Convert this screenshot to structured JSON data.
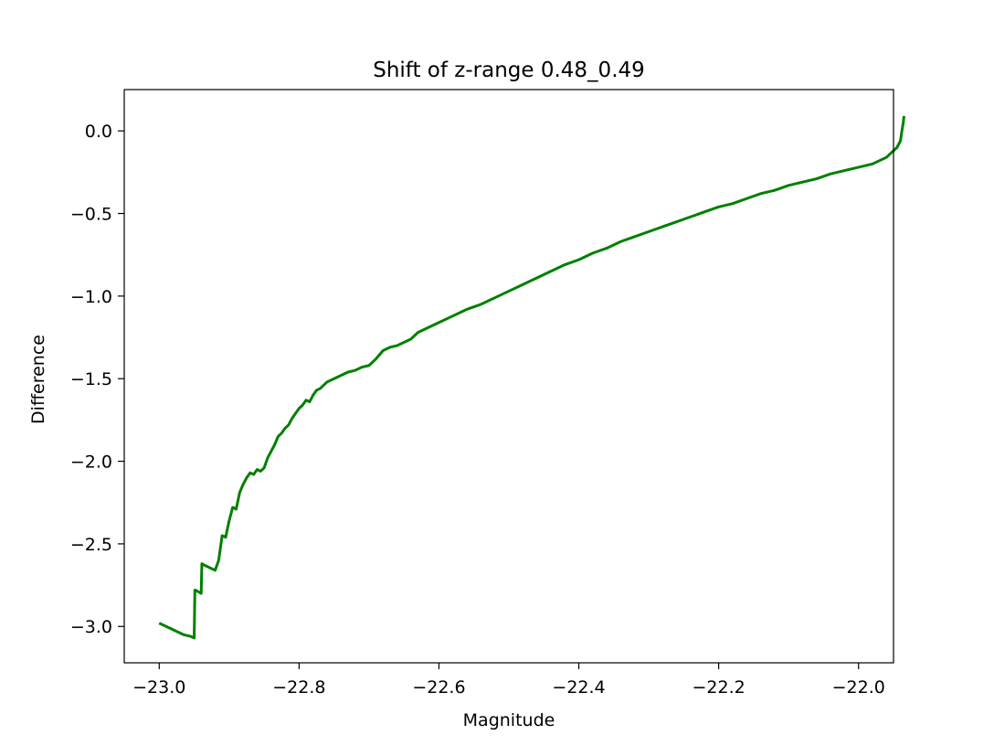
{
  "chart_data": {
    "type": "line",
    "title": "Shift of z-range 0.48_0.49",
    "xlabel": "Magnitude",
    "ylabel": "Difference",
    "xlim": [
      -23.05,
      -21.95
    ],
    "ylim": [
      -3.22,
      0.25
    ],
    "xticks": [
      -23.0,
      -22.8,
      -22.6,
      -22.4,
      -22.2,
      -22.0
    ],
    "xtick_labels": [
      "−23.0",
      "−22.8",
      "−22.6",
      "−22.4",
      "−22.2",
      "−22.0"
    ],
    "yticks": [
      0.0,
      -0.5,
      -1.0,
      -1.5,
      -2.0,
      -2.5,
      -3.0
    ],
    "ytick_labels": [
      "0.0",
      "−0.5",
      "−1.0",
      "−1.5",
      "−2.0",
      "−2.5",
      "−3.0"
    ],
    "grid": false,
    "legend": false,
    "series": [
      {
        "color": "#008000",
        "x": [
          -23.0,
          -22.99,
          -22.98,
          -22.975,
          -22.97,
          -22.965,
          -22.96,
          -22.955,
          -22.95,
          -22.949,
          -22.948,
          -22.94,
          -22.939,
          -22.935,
          -22.93,
          -22.925,
          -22.92,
          -22.915,
          -22.91,
          -22.905,
          -22.9,
          -22.895,
          -22.894,
          -22.89,
          -22.885,
          -22.88,
          -22.875,
          -22.87,
          -22.865,
          -22.86,
          -22.855,
          -22.85,
          -22.845,
          -22.84,
          -22.835,
          -22.83,
          -22.825,
          -22.82,
          -22.815,
          -22.81,
          -22.805,
          -22.8,
          -22.795,
          -22.79,
          -22.785,
          -22.78,
          -22.775,
          -22.77,
          -22.76,
          -22.75,
          -22.74,
          -22.73,
          -22.72,
          -22.71,
          -22.7,
          -22.69,
          -22.68,
          -22.67,
          -22.66,
          -22.65,
          -22.64,
          -22.63,
          -22.62,
          -22.61,
          -22.6,
          -22.58,
          -22.56,
          -22.54,
          -22.52,
          -22.5,
          -22.48,
          -22.46,
          -22.44,
          -22.42,
          -22.4,
          -22.38,
          -22.36,
          -22.34,
          -22.32,
          -22.3,
          -22.28,
          -22.26,
          -22.24,
          -22.22,
          -22.2,
          -22.18,
          -22.16,
          -22.14,
          -22.12,
          -22.1,
          -22.08,
          -22.06,
          -22.04,
          -22.02,
          -22.0,
          -21.98,
          -21.97,
          -21.96,
          -21.955,
          -21.95,
          -21.945,
          -21.94,
          -21.938,
          -21.936,
          -21.935
        ],
        "y": [
          -2.98,
          -3.0,
          -3.02,
          -3.03,
          -3.04,
          -3.05,
          -3.055,
          -3.06,
          -3.07,
          -2.78,
          -2.78,
          -2.8,
          -2.62,
          -2.63,
          -2.64,
          -2.65,
          -2.66,
          -2.6,
          -2.45,
          -2.46,
          -2.36,
          -2.28,
          -2.28,
          -2.29,
          -2.19,
          -2.14,
          -2.1,
          -2.07,
          -2.08,
          -2.05,
          -2.06,
          -2.04,
          -1.98,
          -1.94,
          -1.9,
          -1.85,
          -1.83,
          -1.8,
          -1.78,
          -1.74,
          -1.71,
          -1.68,
          -1.66,
          -1.63,
          -1.64,
          -1.6,
          -1.57,
          -1.56,
          -1.52,
          -1.5,
          -1.48,
          -1.46,
          -1.45,
          -1.43,
          -1.42,
          -1.38,
          -1.33,
          -1.31,
          -1.3,
          -1.28,
          -1.26,
          -1.22,
          -1.2,
          -1.18,
          -1.16,
          -1.12,
          -1.08,
          -1.05,
          -1.01,
          -0.97,
          -0.93,
          -0.89,
          -0.85,
          -0.81,
          -0.78,
          -0.74,
          -0.71,
          -0.67,
          -0.64,
          -0.61,
          -0.58,
          -0.55,
          -0.52,
          -0.49,
          -0.46,
          -0.44,
          -0.41,
          -0.38,
          -0.36,
          -0.33,
          -0.31,
          -0.29,
          -0.26,
          -0.24,
          -0.22,
          -0.2,
          -0.18,
          -0.16,
          -0.14,
          -0.12,
          -0.1,
          -0.06,
          0.0,
          0.05,
          0.09
        ]
      }
    ]
  }
}
